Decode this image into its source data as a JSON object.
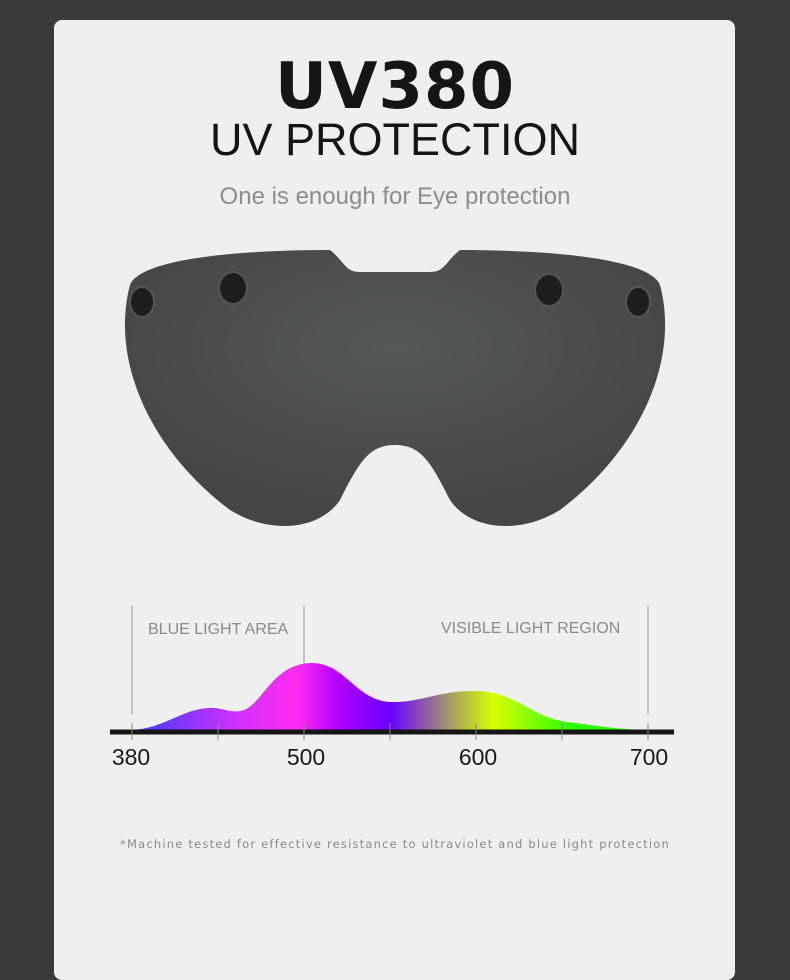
{
  "headline": "UV380",
  "subtitle": "UV PROTECTION",
  "tagline": "One is enough for Eye protection",
  "spectrum": {
    "left_label": "BLUE LIGHT AREA",
    "right_label": "VISIBLE LIGHT REGION",
    "ticks": [
      "380",
      "500",
      "600",
      "700"
    ],
    "colors": [
      "#3b3bff",
      "#ff2af0",
      "#a100ff",
      "#6a00ff",
      "#d7ff00",
      "#2bff00"
    ]
  },
  "footnote": "*Machine tested for effective resistance to ultraviolet and blue light protection",
  "colors": {
    "background": "#3a3a3a",
    "card": "#efefef",
    "visor": "#4a4c4b"
  }
}
